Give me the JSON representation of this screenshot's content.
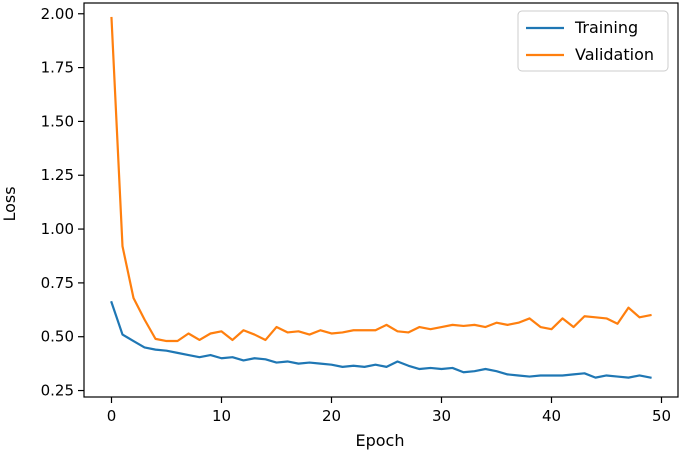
{
  "chart_data": {
    "type": "line",
    "title": "",
    "xlabel": "Epoch",
    "ylabel": "Loss",
    "xlim": [
      -2.5,
      51.5
    ],
    "ylim": [
      0.22,
      2.05
    ],
    "xticks": [
      0,
      10,
      20,
      30,
      40,
      50
    ],
    "yticks": [
      0.25,
      0.5,
      0.75,
      1.0,
      1.25,
      1.5,
      1.75,
      2.0
    ],
    "xtick_labels": [
      "0",
      "10",
      "20",
      "30",
      "40",
      "50"
    ],
    "ytick_labels": [
      "0.25",
      "0.50",
      "0.75",
      "1.00",
      "1.25",
      "1.50",
      "1.75",
      "2.00"
    ],
    "grid": false,
    "legend_position": "top-right",
    "x": [
      0,
      1,
      2,
      3,
      4,
      5,
      6,
      7,
      8,
      9,
      10,
      11,
      12,
      13,
      14,
      15,
      16,
      17,
      18,
      19,
      20,
      21,
      22,
      23,
      24,
      25,
      26,
      27,
      28,
      29,
      30,
      31,
      32,
      33,
      34,
      35,
      36,
      37,
      38,
      39,
      40,
      41,
      42,
      43,
      44,
      45,
      46,
      47,
      48,
      49
    ],
    "series": [
      {
        "name": "Training",
        "color": "#1f77b4",
        "values": [
          0.66,
          0.51,
          0.48,
          0.45,
          0.44,
          0.435,
          0.425,
          0.415,
          0.405,
          0.415,
          0.4,
          0.405,
          0.39,
          0.4,
          0.395,
          0.38,
          0.385,
          0.375,
          0.38,
          0.375,
          0.37,
          0.36,
          0.365,
          0.36,
          0.37,
          0.36,
          0.385,
          0.365,
          0.35,
          0.355,
          0.35,
          0.355,
          0.335,
          0.34,
          0.35,
          0.34,
          0.325,
          0.32,
          0.315,
          0.32,
          0.32,
          0.32,
          0.325,
          0.33,
          0.31,
          0.32,
          0.315,
          0.31,
          0.32,
          0.31
        ]
      },
      {
        "name": "Validation",
        "color": "#ff7f0e",
        "values": [
          1.98,
          0.92,
          0.68,
          0.58,
          0.49,
          0.48,
          0.48,
          0.515,
          0.485,
          0.515,
          0.525,
          0.485,
          0.53,
          0.51,
          0.485,
          0.545,
          0.52,
          0.525,
          0.51,
          0.53,
          0.515,
          0.52,
          0.53,
          0.53,
          0.53,
          0.555,
          0.525,
          0.52,
          0.545,
          0.535,
          0.545,
          0.555,
          0.55,
          0.555,
          0.545,
          0.565,
          0.555,
          0.565,
          0.585,
          0.545,
          0.535,
          0.585,
          0.545,
          0.595,
          0.59,
          0.585,
          0.56,
          0.635,
          0.59,
          0.6
        ]
      }
    ]
  }
}
